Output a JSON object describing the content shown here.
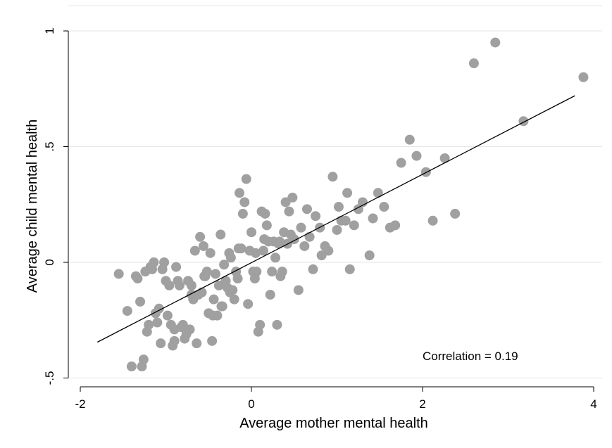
{
  "chart_data": {
    "type": "scatter",
    "title": "",
    "xlabel": "Average mother mental health",
    "ylabel": "Average child mental health",
    "xlim": [
      -2,
      4.1
    ],
    "ylim": [
      -0.5,
      1
    ],
    "xticks": [
      {
        "value": -2,
        "label": "-2"
      },
      {
        "value": 0,
        "label": "0"
      },
      {
        "value": 2,
        "label": "2"
      },
      {
        "value": 4,
        "label": "4"
      }
    ],
    "yticks": [
      {
        "value": -0.5,
        "label": "-.5"
      },
      {
        "value": 0,
        "label": "0"
      },
      {
        "value": 0.5,
        "label": ".5"
      },
      {
        "value": 1,
        "label": "1"
      }
    ],
    "grid": true,
    "annotation": "Correlation = 0.19",
    "colors": {
      "points": "#a0a0a0",
      "line": "#000000",
      "grid": "#e6e6e6"
    },
    "fit_line": {
      "x": [
        -1.8,
        3.78
      ],
      "y": [
        -0.345,
        0.72
      ]
    },
    "points": [
      [
        -1.55,
        -0.05
      ],
      [
        -1.45,
        -0.21
      ],
      [
        -1.4,
        -0.45
      ],
      [
        -1.35,
        -0.06
      ],
      [
        -1.33,
        -0.07
      ],
      [
        -1.3,
        -0.17
      ],
      [
        -1.28,
        -0.45
      ],
      [
        -1.26,
        -0.42
      ],
      [
        -1.24,
        -0.04
      ],
      [
        -1.22,
        -0.3
      ],
      [
        -1.2,
        -0.27
      ],
      [
        -1.18,
        -0.02
      ],
      [
        -1.16,
        -0.03
      ],
      [
        -1.14,
        0.0
      ],
      [
        -1.12,
        -0.22
      ],
      [
        -1.1,
        -0.26
      ],
      [
        -1.08,
        -0.2
      ],
      [
        -1.06,
        -0.35
      ],
      [
        -1.04,
        -0.03
      ],
      [
        -1.02,
        0.0
      ],
      [
        -1.0,
        -0.08
      ],
      [
        -0.98,
        -0.23
      ],
      [
        -0.96,
        -0.1
      ],
      [
        -0.94,
        -0.27
      ],
      [
        -0.92,
        -0.36
      ],
      [
        -0.9,
        -0.29
      ],
      [
        -0.88,
        -0.02
      ],
      [
        -0.86,
        -0.08
      ],
      [
        -0.84,
        -0.1
      ],
      [
        -0.82,
        -0.28
      ],
      [
        -0.8,
        -0.27
      ],
      [
        -0.78,
        -0.33
      ],
      [
        -0.76,
        -0.31
      ],
      [
        -0.74,
        -0.08
      ],
      [
        -0.72,
        -0.29
      ],
      [
        -0.7,
        -0.14
      ],
      [
        -0.68,
        -0.16
      ],
      [
        -0.66,
        0.05
      ],
      [
        -0.64,
        -0.35
      ],
      [
        -0.62,
        -0.14
      ],
      [
        -0.6,
        0.11
      ],
      [
        -0.58,
        -0.13
      ],
      [
        -0.56,
        0.07
      ],
      [
        -0.54,
        -0.06
      ],
      [
        -0.52,
        -0.04
      ],
      [
        -0.5,
        -0.22
      ],
      [
        -0.48,
        0.04
      ],
      [
        -0.46,
        -0.34
      ],
      [
        -0.44,
        -0.16
      ],
      [
        -0.42,
        -0.05
      ],
      [
        -0.4,
        -0.23
      ],
      [
        -0.38,
        -0.1
      ],
      [
        -0.36,
        0.12
      ],
      [
        -0.34,
        -0.19
      ],
      [
        -0.32,
        -0.01
      ],
      [
        -0.3,
        -0.08
      ],
      [
        -0.28,
        -0.11
      ],
      [
        -0.26,
        0.04
      ],
      [
        -0.24,
        0.02
      ],
      [
        -0.22,
        -0.12
      ],
      [
        -0.2,
        -0.16
      ],
      [
        -0.18,
        -0.04
      ],
      [
        -0.16,
        -0.07
      ],
      [
        -0.14,
        0.3
      ],
      [
        -0.12,
        0.06
      ],
      [
        -0.1,
        0.21
      ],
      [
        -0.08,
        0.26
      ],
      [
        -0.06,
        0.36
      ],
      [
        -0.04,
        -0.18
      ],
      [
        -0.02,
        0.05
      ],
      [
        0.0,
        0.13
      ],
      [
        0.02,
        -0.04
      ],
      [
        0.04,
        -0.07
      ],
      [
        0.06,
        -0.04
      ],
      [
        0.08,
        -0.3
      ],
      [
        0.1,
        -0.27
      ],
      [
        0.12,
        0.22
      ],
      [
        0.14,
        0.05
      ],
      [
        0.16,
        0.21
      ],
      [
        0.18,
        0.16
      ],
      [
        0.2,
        0.09
      ],
      [
        0.22,
        -0.14
      ],
      [
        0.24,
        -0.04
      ],
      [
        0.26,
        0.09
      ],
      [
        0.28,
        0.02
      ],
      [
        0.3,
        -0.27
      ],
      [
        0.32,
        0.08
      ],
      [
        0.34,
        -0.06
      ],
      [
        0.36,
        -0.04
      ],
      [
        0.38,
        0.13
      ],
      [
        0.4,
        0.26
      ],
      [
        0.42,
        0.08
      ],
      [
        0.44,
        0.22
      ],
      [
        0.46,
        0.12
      ],
      [
        0.48,
        0.28
      ],
      [
        0.5,
        0.1
      ],
      [
        0.55,
        -0.12
      ],
      [
        0.58,
        0.15
      ],
      [
        0.62,
        0.07
      ],
      [
        0.65,
        0.23
      ],
      [
        0.68,
        0.11
      ],
      [
        0.72,
        -0.03
      ],
      [
        0.75,
        0.2
      ],
      [
        0.8,
        0.15
      ],
      [
        0.82,
        0.03
      ],
      [
        0.86,
        0.07
      ],
      [
        0.9,
        0.05
      ],
      [
        0.95,
        0.37
      ],
      [
        1.0,
        0.14
      ],
      [
        1.02,
        0.24
      ],
      [
        1.05,
        0.18
      ],
      [
        1.1,
        0.18
      ],
      [
        1.12,
        0.3
      ],
      [
        1.15,
        -0.03
      ],
      [
        1.2,
        0.16
      ],
      [
        1.25,
        0.23
      ],
      [
        1.3,
        0.26
      ],
      [
        1.38,
        0.03
      ],
      [
        1.42,
        0.19
      ],
      [
        1.48,
        0.3
      ],
      [
        1.55,
        0.24
      ],
      [
        1.62,
        0.15
      ],
      [
        1.68,
        0.16
      ],
      [
        1.75,
        0.43
      ],
      [
        1.85,
        0.53
      ],
      [
        1.93,
        0.46
      ],
      [
        2.04,
        0.39
      ],
      [
        2.12,
        0.18
      ],
      [
        2.26,
        0.45
      ],
      [
        2.38,
        0.21
      ],
      [
        2.6,
        0.86
      ],
      [
        2.85,
        0.95
      ],
      [
        3.18,
        0.61
      ],
      [
        3.88,
        0.8
      ],
      [
        -0.9,
        -0.34
      ],
      [
        -0.7,
        -0.1
      ],
      [
        -0.55,
        -0.06
      ],
      [
        -0.35,
        -0.19
      ],
      [
        -0.15,
        0.06
      ],
      [
        0.05,
        0.04
      ],
      [
        0.15,
        0.1
      ],
      [
        0.33,
        0.09
      ],
      [
        -0.25,
        -0.13
      ],
      [
        -0.45,
        -0.23
      ]
    ]
  }
}
